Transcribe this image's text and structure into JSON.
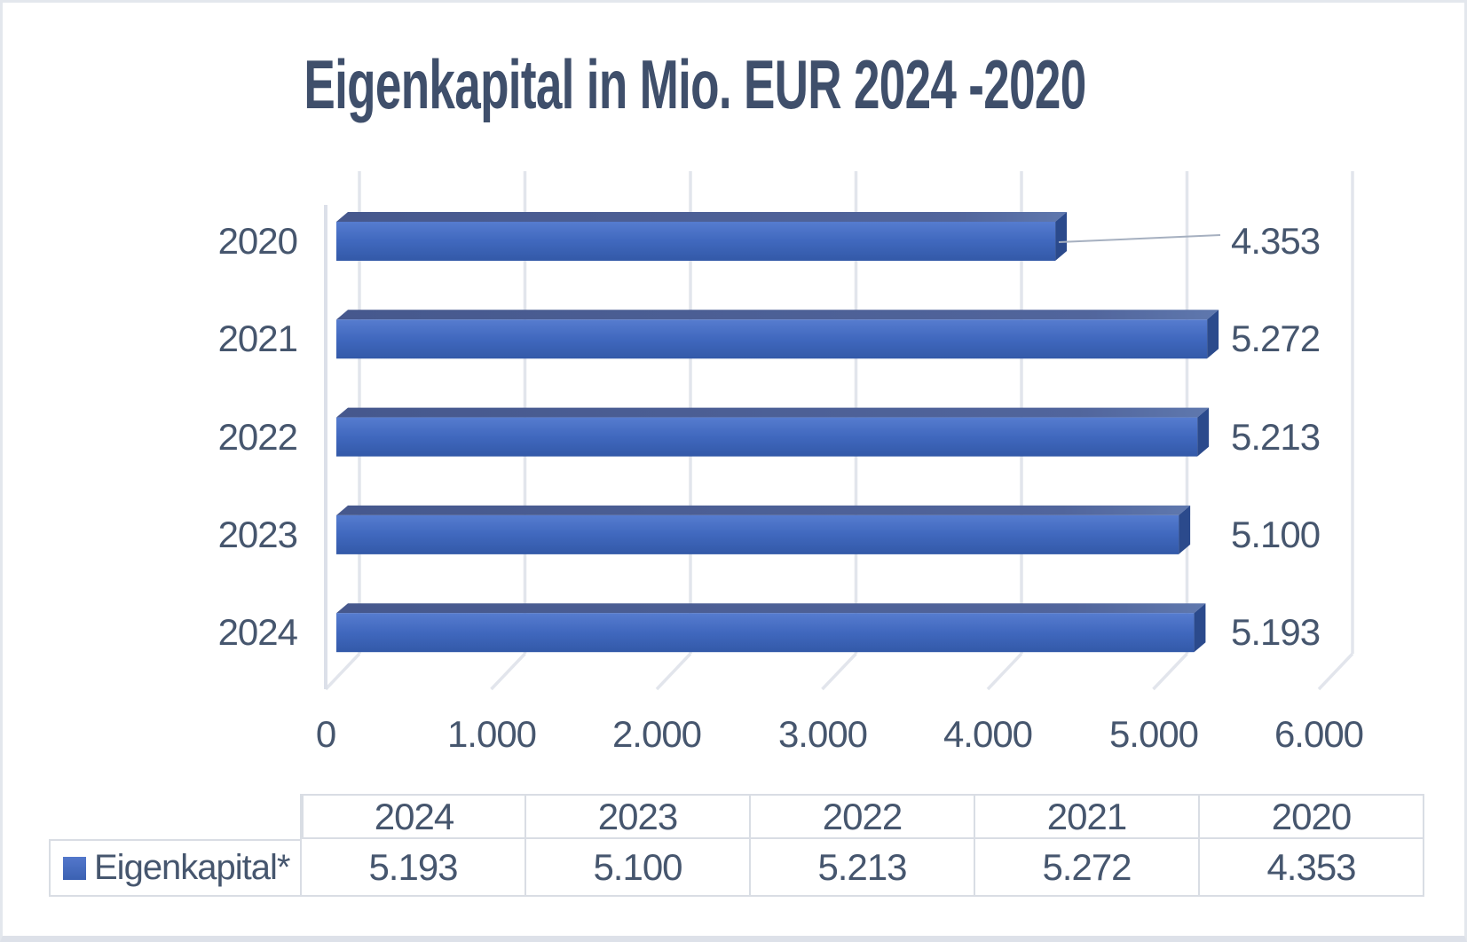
{
  "title": "Eigenkapital in Mio. EUR 2024 -2020",
  "chart_data": {
    "type": "bar",
    "orientation": "horizontal",
    "style": "3d",
    "title": "Eigenkapital in Mio. EUR 2024 -2020",
    "categories": [
      "2020",
      "2021",
      "2022",
      "2023",
      "2024"
    ],
    "series": [
      {
        "name": "Eigenkapital*",
        "values": [
          4353,
          5272,
          5213,
          5100,
          5193
        ]
      }
    ],
    "value_labels": [
      "4.353",
      "5.272",
      "5.213",
      "5.100",
      "5.193"
    ],
    "x_ticks": [
      "0",
      "1.000",
      "2.000",
      "3.000",
      "4.000",
      "5.000",
      "6.000"
    ],
    "xlim": [
      0,
      6000
    ],
    "grid": true,
    "legend_position": "bottom-table",
    "colors": {
      "bar_face_top": "#567CCF",
      "bar_face_mid": "#4068BE",
      "bar_face_bottom": "#3359A8",
      "bar_top_face": "#4A5D94",
      "bar_end_face": "#2B4A8C",
      "gridline": "#E2E5EC",
      "wall_line": "#DCE0E9",
      "label": "#46566E",
      "leader_line": "#A6B0C0"
    }
  },
  "table": {
    "columns": [
      "2024",
      "2023",
      "2022",
      "2021",
      "2020"
    ],
    "rows": [
      {
        "label": "Eigenkapital*",
        "values": [
          "5.193",
          "5.100",
          "5.213",
          "5.272",
          "4.353"
        ]
      }
    ]
  }
}
